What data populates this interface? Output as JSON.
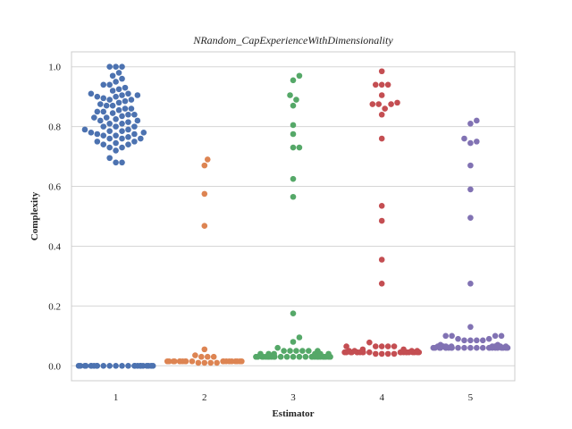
{
  "chart_data": {
    "type": "scatter",
    "title": "NRandom_CapExperienceWithDimensionality",
    "xlabel": "Estimator",
    "ylabel": "Complexity",
    "ylim": [
      -0.05,
      1.05
    ],
    "yticks": [
      "0.0",
      "0.2",
      "0.4",
      "0.6",
      "0.8",
      "1.0"
    ],
    "grid": true,
    "legend": "none",
    "categories": [
      "1",
      "2",
      "3",
      "4",
      "5"
    ],
    "series": [
      {
        "category": "1",
        "color": "#4c72b0",
        "values": [
          0.68,
          0.68,
          0.695,
          0.72,
          0.73,
          0.73,
          0.74,
          0.74,
          0.745,
          0.75,
          0.75,
          0.76,
          0.76,
          0.76,
          0.765,
          0.77,
          0.77,
          0.775,
          0.775,
          0.78,
          0.78,
          0.785,
          0.785,
          0.79,
          0.79,
          0.8,
          0.8,
          0.8,
          0.81,
          0.81,
          0.815,
          0.82,
          0.82,
          0.825,
          0.83,
          0.83,
          0.835,
          0.84,
          0.84,
          0.845,
          0.85,
          0.85,
          0.855,
          0.86,
          0.86,
          0.87,
          0.87,
          0.875,
          0.88,
          0.885,
          0.89,
          0.89,
          0.895,
          0.9,
          0.9,
          0.905,
          0.905,
          0.91,
          0.91,
          0.92,
          0.925,
          0.93,
          0.94,
          0.94,
          0.95,
          0.96,
          0.97,
          0.98,
          1.0,
          1.0,
          1.0,
          0,
          0,
          0,
          0,
          0,
          0,
          0,
          0,
          0,
          0,
          0,
          0,
          0,
          0,
          0,
          0,
          0,
          0,
          0,
          0,
          0,
          0,
          0,
          0
        ]
      },
      {
        "category": "2",
        "color": "#dd8452",
        "values": [
          0.69,
          0.67,
          0.575,
          0.468,
          0.055,
          0.035,
          0.03,
          0.03,
          0.03,
          0.015,
          0.015,
          0.015,
          0.015,
          0.015,
          0.015,
          0.015,
          0.015,
          0.015,
          0.015,
          0.015,
          0.015,
          0.015,
          0.015,
          0.015,
          0.015,
          0.015,
          0.015,
          0.015,
          0.01,
          0.01,
          0.01,
          0.01
        ]
      },
      {
        "category": "3",
        "color": "#55a868",
        "values": [
          0.97,
          0.955,
          0.905,
          0.89,
          0.87,
          0.805,
          0.775,
          0.73,
          0.73,
          0.625,
          0.565,
          0.175,
          0.095,
          0.08,
          0.06,
          0.05,
          0.05,
          0.05,
          0.05,
          0.05,
          0.05,
          0.04,
          0.04,
          0.04,
          0.04,
          0.04,
          0.04,
          0.03,
          0.03,
          0.03,
          0.03,
          0.03,
          0.03,
          0.03,
          0.03,
          0.03,
          0.03,
          0.03,
          0.03,
          0.03,
          0.03,
          0.03,
          0.03,
          0.03,
          0.03,
          0.03,
          0.03,
          0.03,
          0.03,
          0.03,
          0.03,
          0.03,
          0.03
        ]
      },
      {
        "category": "4",
        "color": "#c44e52",
        "values": [
          0.985,
          0.94,
          0.94,
          0.94,
          0.905,
          0.88,
          0.875,
          0.875,
          0.875,
          0.86,
          0.84,
          0.76,
          0.535,
          0.485,
          0.355,
          0.275,
          0.078,
          0.065,
          0.065,
          0.065,
          0.065,
          0.065,
          0.055,
          0.055,
          0.05,
          0.05,
          0.05,
          0.05,
          0.045,
          0.045,
          0.045,
          0.045,
          0.045,
          0.045,
          0.045,
          0.045,
          0.045,
          0.045,
          0.045,
          0.045,
          0.045,
          0.045,
          0.045,
          0.045,
          0.045,
          0.045,
          0.045,
          0.045,
          0.04,
          0.04,
          0.04,
          0.04
        ]
      },
      {
        "category": "5",
        "color": "#8172b3",
        "values": [
          0.82,
          0.81,
          0.76,
          0.75,
          0.745,
          0.67,
          0.59,
          0.495,
          0.275,
          0.13,
          0.1,
          0.1,
          0.1,
          0.1,
          0.09,
          0.09,
          0.085,
          0.085,
          0.085,
          0.085,
          0.07,
          0.07,
          0.065,
          0.065,
          0.065,
          0.065,
          0.065,
          0.065,
          0.065,
          0.065,
          0.06,
          0.06,
          0.06,
          0.06,
          0.06,
          0.06,
          0.06,
          0.06,
          0.06,
          0.06,
          0.06,
          0.06,
          0.06,
          0.06,
          0.06,
          0.06,
          0.06,
          0.06,
          0.06,
          0.06,
          0.06,
          0.06,
          0.06
        ]
      }
    ]
  }
}
